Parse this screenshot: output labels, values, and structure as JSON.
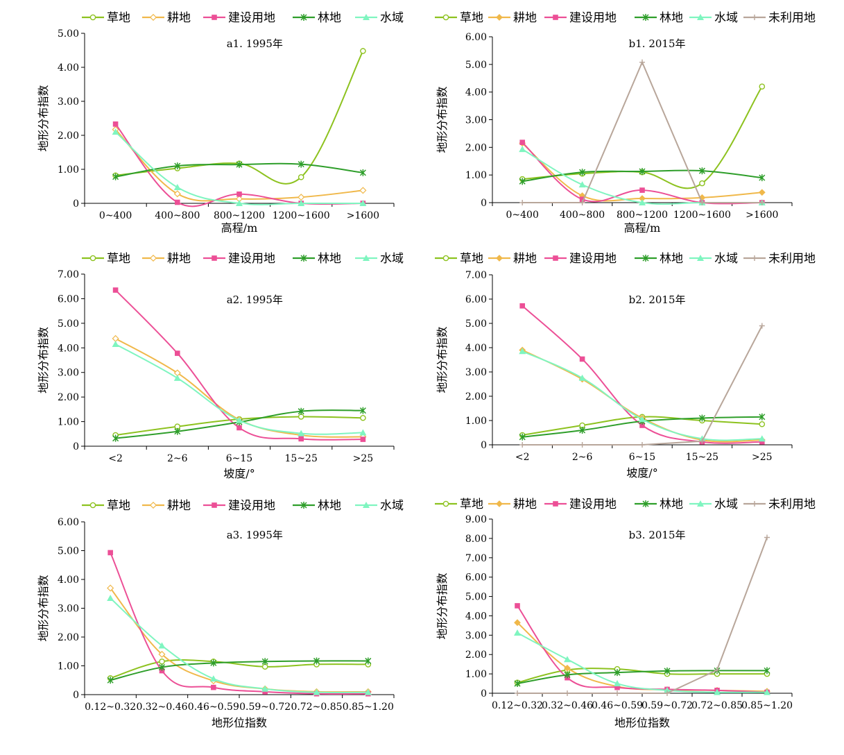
{
  "colors": {
    "草地": "#8dc21f",
    "耕地": "#f0b84a",
    "建设用地": "#ec4f96",
    "林地": "#2e9e2a",
    "水域": "#7ff5c0",
    "未利用地": "#b8a69a"
  },
  "chart_data": [
    {
      "type": "line",
      "title": "a1. 1995年",
      "xlabel": "高程/m",
      "ylabel": "地形分布指数",
      "categories": [
        "0~400",
        "400~800",
        "800~1200",
        "1200~1600",
        ">1600"
      ],
      "ylim": [
        0,
        5
      ],
      "yticks": [
        "0",
        "1.00",
        "2.00",
        "3.00",
        "4.00",
        "5.00"
      ],
      "legend": "top",
      "series": [
        {
          "name": "草地",
          "values": [
            0.82,
            1.03,
            1.17,
            0.77,
            4.48
          ]
        },
        {
          "name": "耕地",
          "values": [
            2.17,
            0.28,
            0.13,
            0.18,
            0.38
          ]
        },
        {
          "name": "建设用地",
          "values": [
            2.33,
            0.03,
            0.27,
            0.0,
            0.0
          ]
        },
        {
          "name": "林地",
          "values": [
            0.78,
            1.1,
            1.14,
            1.15,
            0.9
          ]
        },
        {
          "name": "水域",
          "values": [
            2.1,
            0.47,
            0.0,
            0.0,
            0.0
          ]
        }
      ]
    },
    {
      "type": "line",
      "title": "b1. 2015年",
      "xlabel": "高程/m",
      "ylabel": "地形分布指数",
      "categories": [
        "0~400",
        "400~800",
        "800~1200",
        "1200~1600",
        ">1600"
      ],
      "ylim": [
        0,
        6
      ],
      "yticks": [
        "0",
        "1.00",
        "2.00",
        "3.00",
        "4.00",
        "5.00",
        "6.00"
      ],
      "legend": "top",
      "series": [
        {
          "name": "草地",
          "values": [
            0.85,
            1.05,
            1.1,
            0.7,
            4.2
          ]
        },
        {
          "name": "耕地",
          "values": [
            2.15,
            0.25,
            0.15,
            0.18,
            0.37
          ]
        },
        {
          "name": "建设用地",
          "values": [
            2.18,
            0.12,
            0.45,
            0.0,
            0.0
          ]
        },
        {
          "name": "林地",
          "values": [
            0.77,
            1.1,
            1.13,
            1.15,
            0.9
          ]
        },
        {
          "name": "水域",
          "values": [
            1.93,
            0.65,
            0.0,
            0.0,
            0.0
          ]
        },
        {
          "name": "未利用地",
          "values": [
            0.0,
            0.0,
            5.08,
            0.0,
            0.0
          ]
        }
      ]
    },
    {
      "type": "line",
      "title": "a2. 1995年",
      "xlabel": "坡度/°",
      "ylabel": "地形分布指数",
      "categories": [
        "<2",
        "2~6",
        "6~15",
        "15~25",
        ">25"
      ],
      "ylim": [
        0,
        7
      ],
      "yticks": [
        "0",
        "1.00",
        "2.00",
        "3.00",
        "4.00",
        "5.00",
        "6.00",
        "7.00"
      ],
      "legend": "top",
      "series": [
        {
          "name": "草地",
          "values": [
            0.45,
            0.8,
            1.1,
            1.2,
            1.15
          ]
        },
        {
          "name": "耕地",
          "values": [
            4.38,
            2.98,
            1.08,
            0.45,
            0.38
          ]
        },
        {
          "name": "建设用地",
          "values": [
            6.35,
            3.78,
            0.75,
            0.3,
            0.28
          ]
        },
        {
          "name": "林地",
          "values": [
            0.32,
            0.6,
            0.98,
            1.42,
            1.45
          ]
        },
        {
          "name": "水域",
          "values": [
            4.15,
            2.77,
            1.05,
            0.52,
            0.55
          ]
        }
      ]
    },
    {
      "type": "line",
      "title": "b2. 2015年",
      "xlabel": "坡度/°",
      "ylabel": "地形分布指数",
      "categories": [
        "<2",
        "2~6",
        "6~15",
        "15~25",
        ">25"
      ],
      "ylim": [
        0,
        7
      ],
      "yticks": [
        "0",
        "1.00",
        "2.00",
        "3.00",
        "4.00",
        "5.00",
        "6.00",
        "7.00"
      ],
      "legend": "top",
      "series": [
        {
          "name": "草地",
          "values": [
            0.4,
            0.8,
            1.15,
            1.0,
            0.85
          ]
        },
        {
          "name": "耕地",
          "values": [
            3.9,
            2.7,
            1.1,
            0.2,
            0.2
          ]
        },
        {
          "name": "建设用地",
          "values": [
            5.72,
            3.53,
            0.8,
            0.12,
            0.12
          ]
        },
        {
          "name": "林地",
          "values": [
            0.32,
            0.6,
            0.97,
            1.1,
            1.15
          ]
        },
        {
          "name": "水域",
          "values": [
            3.85,
            2.75,
            1.05,
            0.25,
            0.25
          ]
        },
        {
          "name": "未利用地",
          "values": [
            0.0,
            0.0,
            0.0,
            0.15,
            4.9
          ]
        }
      ]
    },
    {
      "type": "line",
      "title": "a3. 1995年",
      "xlabel": "地形位指数",
      "ylabel": "地形分布指数",
      "categories": [
        "0.12~0.32",
        "0.32~0.46",
        "0.46~0.59",
        "0.59~0.72",
        "0.72~0.85",
        "0.85~1.20"
      ],
      "ylim": [
        0,
        6
      ],
      "yticks": [
        "0",
        "1.00",
        "2.00",
        "3.00",
        "4.00",
        "5.00",
        "6.00"
      ],
      "legend": "top",
      "series": [
        {
          "name": "草地",
          "values": [
            0.57,
            1.15,
            1.15,
            0.97,
            1.05,
            1.05
          ]
        },
        {
          "name": "耕地",
          "values": [
            3.7,
            1.4,
            0.48,
            0.2,
            0.1,
            0.1
          ]
        },
        {
          "name": "建设用地",
          "values": [
            4.93,
            0.83,
            0.25,
            0.1,
            0.03,
            0.03
          ]
        },
        {
          "name": "林地",
          "values": [
            0.5,
            0.95,
            1.1,
            1.15,
            1.17,
            1.17
          ]
        },
        {
          "name": "水域",
          "values": [
            3.35,
            1.7,
            0.55,
            0.2,
            0.08,
            0.08
          ]
        }
      ]
    },
    {
      "type": "line",
      "title": "b3. 2015年",
      "xlabel": "地形位指数",
      "ylabel": "地形分布指数",
      "categories": [
        "0.12~0.32",
        "0.32~0.46",
        "0.46~0.59",
        "0.59~0.72",
        "0.72~0.85",
        "0.85~1.20"
      ],
      "ylim": [
        0,
        9
      ],
      "yticks": [
        "0",
        "1.00",
        "2.00",
        "3.00",
        "4.00",
        "5.00",
        "6.00",
        "7.00",
        "8.00",
        "9.00"
      ],
      "legend": "top",
      "series": [
        {
          "name": "草地",
          "values": [
            0.55,
            1.2,
            1.25,
            1.0,
            1.0,
            1.0
          ]
        },
        {
          "name": "耕地",
          "values": [
            3.65,
            1.3,
            0.35,
            0.18,
            0.15,
            0.1
          ]
        },
        {
          "name": "建设用地",
          "values": [
            4.52,
            0.8,
            0.3,
            0.2,
            0.15,
            0.05
          ]
        },
        {
          "name": "林地",
          "values": [
            0.5,
            0.95,
            1.07,
            1.15,
            1.17,
            1.17
          ]
        },
        {
          "name": "水域",
          "values": [
            3.12,
            1.75,
            0.5,
            0.15,
            0.05,
            0.05
          ]
        },
        {
          "name": "未利用地",
          "values": [
            0.0,
            0.0,
            0.0,
            0.0,
            1.2,
            8.05
          ]
        }
      ]
    }
  ]
}
